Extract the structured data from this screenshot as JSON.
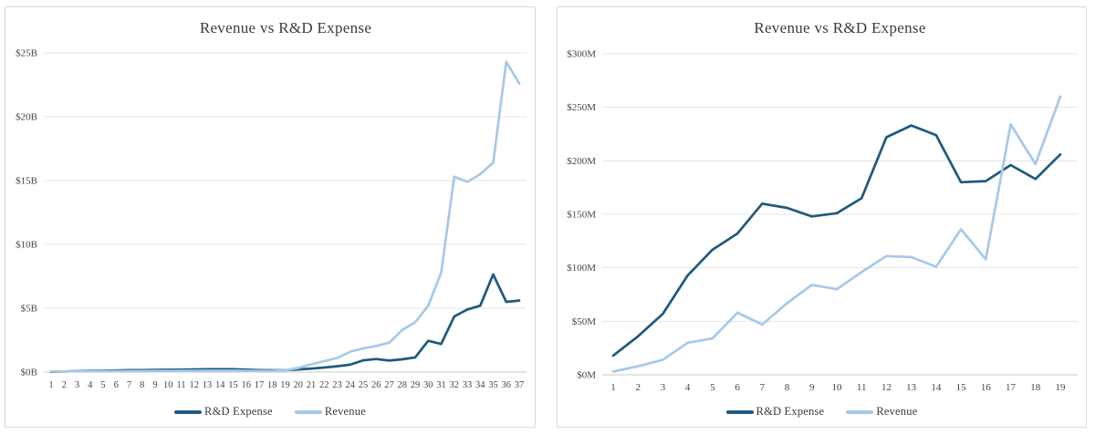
{
  "chart_data": [
    {
      "panel": "left",
      "type": "line",
      "title": "Revenue vs R&D Expense",
      "grid": true,
      "legend_position": "bottom",
      "ylim": [
        0,
        25
      ],
      "y_ticks": [
        {
          "label": "$0B",
          "value": 0
        },
        {
          "label": "$5B",
          "value": 5
        },
        {
          "label": "$10B",
          "value": 10
        },
        {
          "label": "$15B",
          "value": 15
        },
        {
          "label": "$20B",
          "value": 20
        },
        {
          "label": "$25B",
          "value": 25
        }
      ],
      "x": [
        "1",
        "2",
        "3",
        "4",
        "5",
        "6",
        "7",
        "8",
        "9",
        "10",
        "11",
        "12",
        "13",
        "14",
        "15",
        "16",
        "17",
        "18",
        "19",
        "20",
        "21",
        "22",
        "23",
        "24",
        "25",
        "26",
        "27",
        "28",
        "29",
        "30",
        "31",
        "32",
        "33",
        "34",
        "35",
        "36",
        "37"
      ],
      "series": [
        {
          "name": "R&D Expense",
          "color": "#1d5a7d",
          "values": [
            0.03,
            0.05,
            0.07,
            0.09,
            0.11,
            0.13,
            0.15,
            0.16,
            0.17,
            0.18,
            0.19,
            0.21,
            0.22,
            0.23,
            0.22,
            0.19,
            0.16,
            0.14,
            0.16,
            0.21,
            0.27,
            0.36,
            0.46,
            0.58,
            0.92,
            1.02,
            0.9,
            1.0,
            1.15,
            2.45,
            2.2,
            4.35,
            4.9,
            5.2,
            7.65,
            5.5,
            5.6
          ]
        },
        {
          "name": "Revenue",
          "color": "#a6c8e9",
          "values": [
            0.05,
            0.05,
            0.06,
            0.06,
            0.07,
            0.07,
            0.08,
            0.08,
            0.09,
            0.09,
            0.1,
            0.1,
            0.11,
            0.11,
            0.11,
            0.1,
            0.09,
            0.09,
            0.14,
            0.33,
            0.6,
            0.85,
            1.1,
            1.6,
            1.85,
            2.05,
            2.3,
            3.3,
            3.9,
            5.2,
            7.8,
            15.3,
            14.9,
            15.5,
            16.4,
            24.3,
            22.6
          ]
        }
      ]
    },
    {
      "panel": "right",
      "type": "line",
      "title": "Revenue vs R&D Expense",
      "grid": true,
      "legend_position": "bottom",
      "ylim": [
        0,
        300
      ],
      "y_ticks": [
        {
          "label": "$0M",
          "value": 0
        },
        {
          "label": "$50M",
          "value": 50
        },
        {
          "label": "$100M",
          "value": 100
        },
        {
          "label": "$150M",
          "value": 150
        },
        {
          "label": "$200M",
          "value": 200
        },
        {
          "label": "$250M",
          "value": 250
        },
        {
          "label": "$300M",
          "value": 300
        }
      ],
      "x": [
        "1",
        "2",
        "3",
        "4",
        "5",
        "6",
        "7",
        "8",
        "9",
        "10",
        "11",
        "12",
        "13",
        "14",
        "15",
        "16",
        "17",
        "18",
        "19"
      ],
      "series": [
        {
          "name": "R&D Expense",
          "color": "#1d5a7d",
          "values": [
            18,
            36,
            57,
            93,
            117,
            132,
            160,
            156,
            148,
            151,
            165,
            222,
            233,
            224,
            180,
            181,
            196,
            183,
            206
          ]
        },
        {
          "name": "Revenue",
          "color": "#a6c8e9",
          "values": [
            3,
            8,
            14,
            30,
            34,
            58,
            47,
            67,
            84,
            80,
            96,
            111,
            110,
            101,
            136,
            108,
            234,
            197,
            260
          ]
        }
      ]
    }
  ],
  "colors": {
    "rd_expense": "#1d5a7d",
    "revenue": "#a6c8e9",
    "gridline": "#e4e4e4",
    "axis_line": "#c8c8c8",
    "tick_text": "#454545",
    "title_text": "#3c3c3c",
    "panel_border": "#d9d9d9"
  }
}
